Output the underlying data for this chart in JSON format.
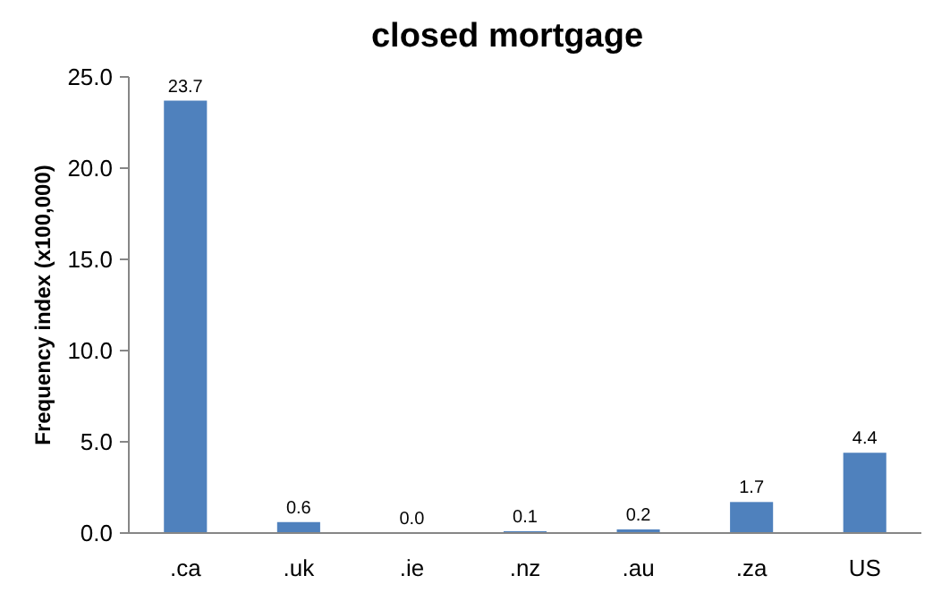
{
  "chart_data": {
    "type": "bar",
    "title": "closed mortgage",
    "ylabel": "Frequency index (x100,000)",
    "categories": [
      ".ca",
      ".uk",
      ".ie",
      ".nz",
      ".au",
      ".za",
      "US"
    ],
    "values": [
      23.7,
      0.6,
      0.0,
      0.1,
      0.2,
      1.7,
      4.4
    ],
    "value_labels": [
      "23.7",
      "0.6",
      "0.0",
      "0.1",
      "0.2",
      "1.7",
      "4.4"
    ],
    "color": "#4f81bd",
    "ylim": [
      0,
      25
    ],
    "yticks": [
      {
        "value": 0,
        "label": "0.0"
      },
      {
        "value": 5,
        "label": "5.0"
      },
      {
        "value": 10,
        "label": "10.0"
      },
      {
        "value": 15,
        "label": "15.0"
      },
      {
        "value": 20,
        "label": "20.0"
      },
      {
        "value": 25,
        "label": "25.0"
      }
    ],
    "grid": false
  }
}
